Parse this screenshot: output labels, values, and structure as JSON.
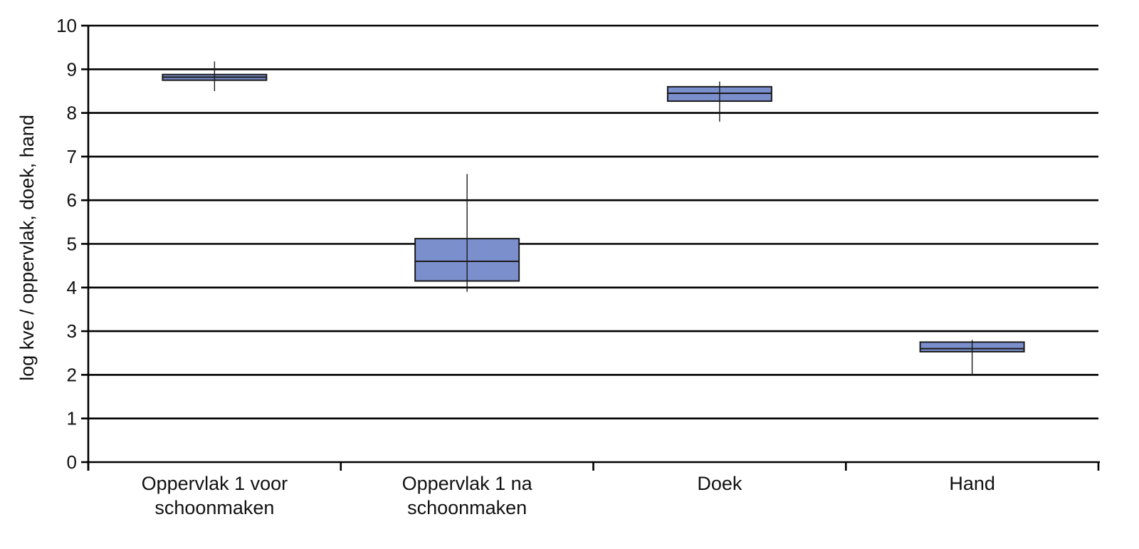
{
  "chart_data": {
    "type": "box",
    "ylabel": "log kve / oppervlak, doek, hand",
    "ylim": [
      0,
      10
    ],
    "yticks": [
      "0",
      "1",
      "2",
      "3",
      "4",
      "5",
      "6",
      "7",
      "8",
      "9",
      "10"
    ],
    "grid": true,
    "categories": [
      [
        "Oppervlak 1 voor",
        "schoonmaken"
      ],
      [
        "Oppervlak 1 na",
        "schoonmaken"
      ],
      [
        "Doek"
      ],
      [
        "Hand"
      ]
    ],
    "boxes": [
      {
        "whisker_low": 8.5,
        "q1": 8.75,
        "median": 8.82,
        "q3": 8.88,
        "whisker_high": 9.18
      },
      {
        "whisker_low": 3.9,
        "q1": 4.15,
        "median": 4.6,
        "q3": 5.12,
        "whisker_high": 6.6
      },
      {
        "whisker_low": 7.8,
        "q1": 8.27,
        "median": 8.45,
        "q3": 8.6,
        "whisker_high": 8.72
      },
      {
        "whisker_low": 2.0,
        "q1": 2.53,
        "median": 2.6,
        "q3": 2.75,
        "whisker_high": 2.8
      }
    ],
    "colors": {
      "box_fill": "#7b8fcd",
      "box_stroke": "#1a1a1a",
      "grid": "#000000",
      "axis": "#000000"
    }
  }
}
